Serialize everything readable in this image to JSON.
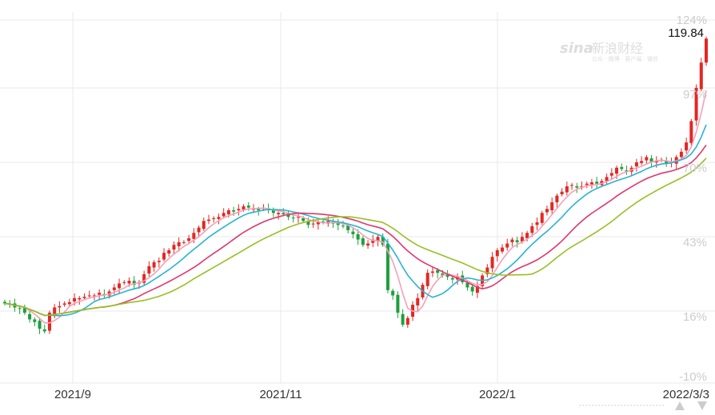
{
  "watermark": {
    "brand": "sina",
    "name": "新浪财经",
    "tagline": "公众 · 微博 · 客户端 · 微信"
  },
  "last_price_label": "119.84",
  "nav_icons": {
    "up": "triangle-up-icon",
    "down": "triangle-down-icon"
  },
  "colors": {
    "up": "#e32722",
    "down": "#1ca03c",
    "ma5": "#f4a0b6",
    "ma10": "#27b4d1",
    "ma20": "#e0376c",
    "ma30": "#96c024",
    "grid": "#e8e8e8"
  },
  "chart_data": {
    "type": "candlestick",
    "title": "",
    "xlabel": "",
    "ylabel": "",
    "y_axis_labels": [
      "124%",
      "97%",
      "70%",
      "43%",
      "16%",
      "-10%"
    ],
    "ylim_percent": [
      -10,
      124
    ],
    "x_tick_labels": [
      "2021/9",
      "2021/11",
      "2022/1",
      "2022/3/3"
    ],
    "grid": true,
    "legend": "none",
    "series_close_percent": [
      17.5,
      17.0,
      16.0,
      15.5,
      14.0,
      11.5,
      10.5,
      8.0,
      7.0,
      14.0,
      16.0,
      16.5,
      17.5,
      18.0,
      19.5,
      19.5,
      20.0,
      20.5,
      20.5,
      21.5,
      20.5,
      22.0,
      23.5,
      25.0,
      25.5,
      26.0,
      24.5,
      25.5,
      28.5,
      31.5,
      33.0,
      33.5,
      36.5,
      37.5,
      39.5,
      40.5,
      40.5,
      42.0,
      44.0,
      46.0,
      48.5,
      49.0,
      49.5,
      50.0,
      51.5,
      52.5,
      52.0,
      53.0,
      54.0,
      53.5,
      53.0,
      52.5,
      53.5,
      52.5,
      51.5,
      51.5,
      51.0,
      50.0,
      49.5,
      50.0,
      48.5,
      47.0,
      47.5,
      48.0,
      48.0,
      48.5,
      47.5,
      47.0,
      46.5,
      45.0,
      43.5,
      41.5,
      39.5,
      40.0,
      41.5,
      42.5,
      39.5,
      22.5,
      20.5,
      14.0,
      9.5,
      12.0,
      17.0,
      19.5,
      24.5,
      29.0,
      29.5,
      29.0,
      28.0,
      27.5,
      26.5,
      27.5,
      25.5,
      23.5,
      22.0,
      24.0,
      28.0,
      31.0,
      35.0,
      37.5,
      38.5,
      40.0,
      41.5,
      40.5,
      42.5,
      44.0,
      46.5,
      48.0,
      51.5,
      53.0,
      55.5,
      58.0,
      59.5,
      61.5,
      62.0,
      61.0,
      61.5,
      62.5,
      63.0,
      62.5,
      63.5,
      65.0,
      66.5,
      68.5,
      68.0,
      67.0,
      68.5,
      70.5,
      71.0,
      72.5,
      70.5,
      71.0,
      71.5,
      70.0,
      70.5,
      72.5,
      74.5,
      78.0,
      86.0,
      98.5,
      108.0,
      117.0
    ],
    "last_value": 119.84
  }
}
